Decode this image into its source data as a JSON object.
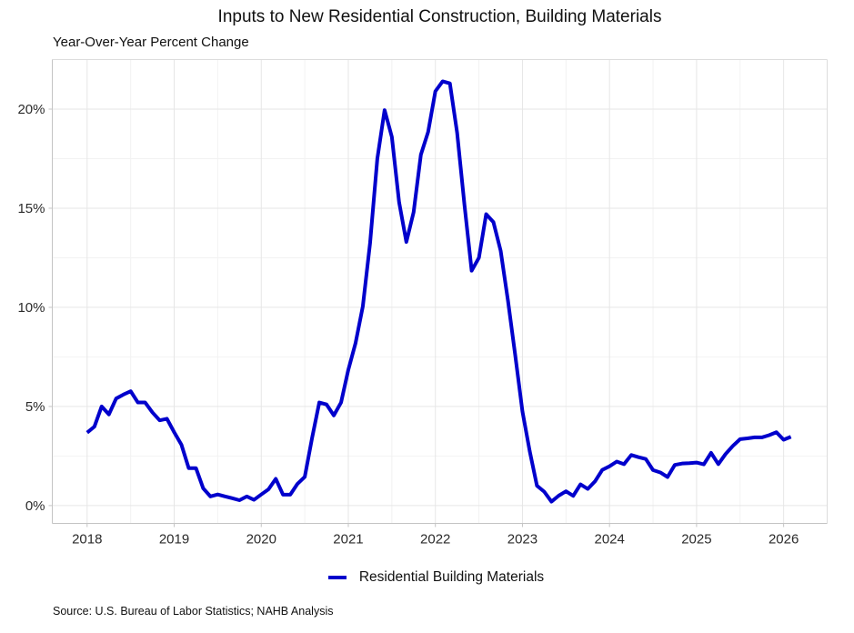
{
  "chart_data": {
    "type": "line",
    "title": "Inputs to New Residential Construction, Building Materials",
    "subtitle": "Year-Over-Year Percent Change",
    "xlabel": "",
    "ylabel": "Year-Over-Year Percent Change",
    "x_start": "2018-01",
    "x_frequency": "monthly",
    "xlim": [
      2017.6,
      2026.5
    ],
    "ylim": [
      -0.9,
      22.5
    ],
    "x_ticks": [
      2018,
      2019,
      2020,
      2021,
      2022,
      2023,
      2024,
      2025,
      2026
    ],
    "x_tick_labels": [
      "2018",
      "2019",
      "2020",
      "2021",
      "2022",
      "2023",
      "2024",
      "2025",
      "2026"
    ],
    "y_ticks": [
      0,
      5,
      10,
      15,
      20
    ],
    "y_tick_labels": [
      "0%",
      "5%",
      "10%",
      "15%",
      "20%"
    ],
    "y_minor_ticks": [
      2.5,
      7.5,
      12.5,
      17.5
    ],
    "grid": true,
    "legend_position": "bottom",
    "series": [
      {
        "name": "Residential Building Materials",
        "color": "#0000cc",
        "values": [
          3.68,
          3.98,
          5.0,
          4.6,
          5.4,
          5.6,
          5.77,
          5.2,
          5.2,
          4.7,
          4.3,
          4.38,
          3.7,
          3.07,
          1.89,
          1.89,
          0.87,
          0.46,
          0.56,
          0.46,
          0.37,
          0.27,
          0.46,
          0.29,
          0.56,
          0.82,
          1.35,
          0.55,
          0.55,
          1.1,
          1.45,
          3.4,
          5.2,
          5.1,
          4.55,
          5.2,
          6.85,
          8.2,
          10.05,
          13.25,
          17.5,
          19.95,
          18.6,
          15.3,
          13.3,
          14.8,
          17.7,
          18.85,
          20.9,
          21.4,
          21.3,
          18.8,
          15.2,
          11.85,
          12.5,
          14.7,
          14.3,
          12.85,
          10.35,
          7.6,
          4.75,
          2.75,
          1.0,
          0.7,
          0.2,
          0.5,
          0.72,
          0.49,
          1.07,
          0.84,
          1.22,
          1.8,
          1.98,
          2.22,
          2.09,
          2.55,
          2.44,
          2.35,
          1.79,
          1.67,
          1.44,
          2.05,
          2.12,
          2.14,
          2.17,
          2.08,
          2.66,
          2.09,
          2.6,
          3.01,
          3.35,
          3.39,
          3.44,
          3.44,
          3.55,
          3.7,
          3.32,
          3.47
        ]
      }
    ],
    "source": "Source: U.S. Bureau of Labor Statistics; NAHB Analysis"
  },
  "legend": {
    "label": "Residential Building Materials"
  }
}
